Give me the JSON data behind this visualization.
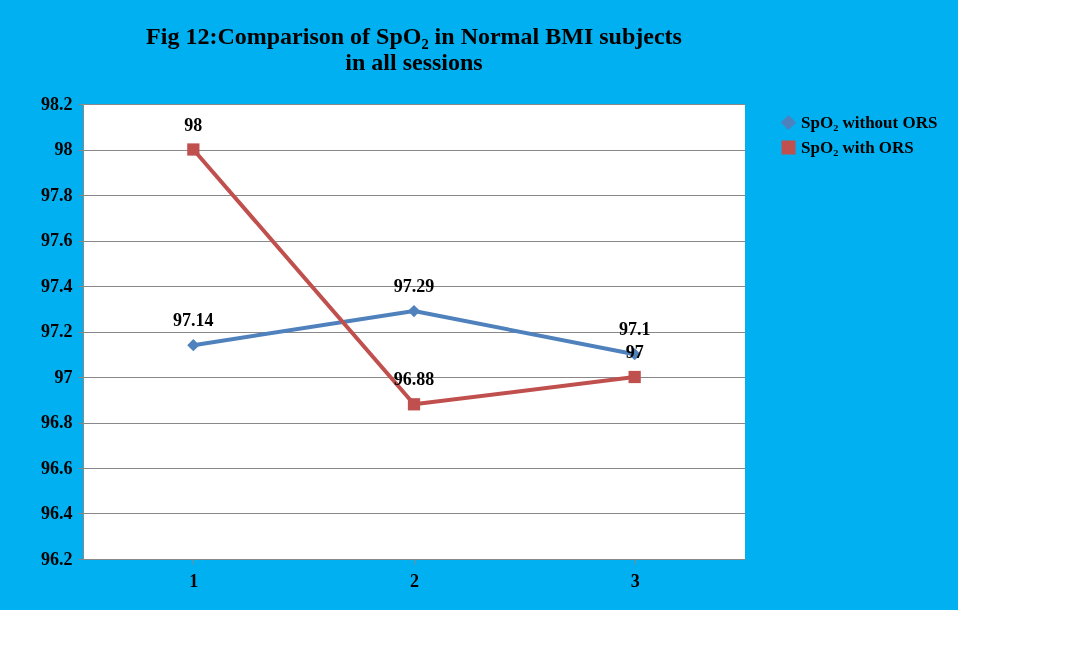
{
  "chart_data": {
    "type": "line",
    "title": "Fig 12:Comparison  of  SpO₂  in  Normal BMI  subjects  in all  sessions",
    "categories": [
      "1",
      "2",
      "3"
    ],
    "series": [
      {
        "name": "SpO₂ without ORS",
        "color": "#4f81bd",
        "marker": "diamond",
        "values": [
          97.14,
          97.29,
          97.1
        ]
      },
      {
        "name": "SpO₂ with ORS",
        "color": "#c0504d",
        "marker": "square",
        "values": [
          98,
          96.88,
          97
        ]
      }
    ],
    "ylim": [
      96.2,
      98.2
    ],
    "yticks": [
      96.2,
      96.4,
      96.6,
      96.8,
      97,
      97.2,
      97.4,
      97.6,
      97.8,
      98,
      98.2
    ],
    "grid": "y",
    "legend": "right",
    "data_labels": true,
    "line_style": "solid"
  }
}
